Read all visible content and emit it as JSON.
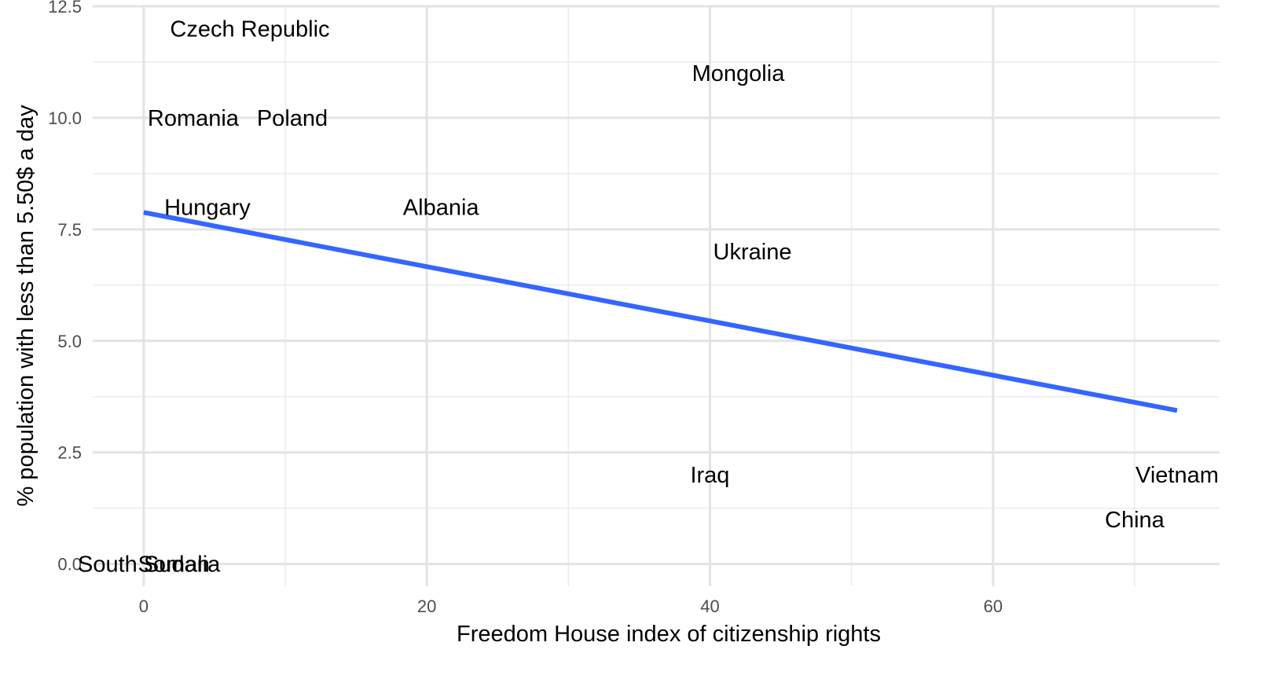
{
  "chart_data": {
    "type": "scatter",
    "title": "",
    "xlabel": "Freedom House index of citizenship rights",
    "ylabel": "% population with less than 5.50$ a day",
    "xlim": [
      -3.6,
      76
    ],
    "ylim": [
      -0.5,
      12.5
    ],
    "x_ticks": [
      0,
      20,
      40,
      60
    ],
    "y_ticks": [
      0.0,
      2.5,
      5.0,
      7.5,
      10.0,
      12.5
    ],
    "x_tick_labels": [
      "0",
      "20",
      "40",
      "60"
    ],
    "y_tick_labels": [
      "0.0",
      "2.5",
      "5.0",
      "7.5",
      "10.0",
      "12.5"
    ],
    "grid": true,
    "label_color": "#000000",
    "points": [
      {
        "label": "Czech Republic",
        "x": 7.5,
        "y": 12
      },
      {
        "label": "Mongolia",
        "x": 42,
        "y": 11
      },
      {
        "label": "Poland",
        "x": 10.5,
        "y": 10
      },
      {
        "label": "Romania",
        "x": 3.5,
        "y": 10
      },
      {
        "label": "Albania",
        "x": 21,
        "y": 8
      },
      {
        "label": "Hungary",
        "x": 4.5,
        "y": 8
      },
      {
        "label": "Ukraine",
        "x": 43,
        "y": 7
      },
      {
        "label": "Iraq",
        "x": 40,
        "y": 2
      },
      {
        "label": "Vietnam",
        "x": 73,
        "y": 2
      },
      {
        "label": "China",
        "x": 70,
        "y": 1
      },
      {
        "label": "Somalia",
        "x": 2.5,
        "y": 0
      },
      {
        "label": "South Sudan",
        "x": 0,
        "y": 0
      }
    ],
    "trend_line": {
      "color": "#3366FF",
      "x": [
        0,
        73
      ],
      "y": [
        7.88,
        3.44
      ]
    }
  },
  "icons": [
    "none"
  ]
}
